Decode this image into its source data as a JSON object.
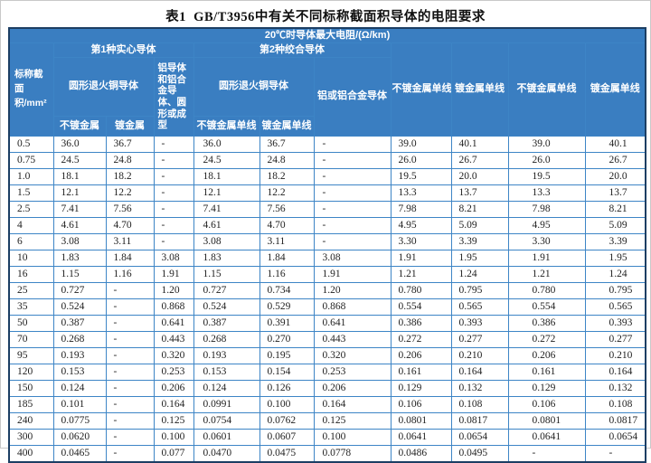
{
  "title": "表1  GB/T3956中有关不同标称截面积导体的电阻要求",
  "table": {
    "top_header": "20℃时导体最大电阻/(Ω/km)",
    "col1_header": "标称截面积/mm²",
    "group1": {
      "label": "第1种实心导体",
      "sub1": "圆形退火铜导体",
      "sub1_cols": [
        "不镀金属",
        "镀金属"
      ],
      "sub2": "铝导体和铝合金导体、圆形或成型"
    },
    "group2": {
      "label": "第2种绞合导体",
      "sub1": "圆形退火铜导体",
      "sub1_cols": [
        "不镀金属单线",
        "镀金属单线"
      ],
      "sub2": "铝或铝合金导体"
    },
    "standalone_cols": [
      "不镀金属单线",
      "镀金属单线",
      "不镀金属单线",
      "镀金属单线"
    ],
    "rows": [
      [
        "0.5",
        "36.0",
        "36.7",
        "-",
        "36.0",
        "36.7",
        "-",
        "39.0",
        "40.1",
        "39.0",
        "40.1"
      ],
      [
        "0.75",
        "24.5",
        "24.8",
        "-",
        "24.5",
        "24.8",
        "-",
        "26.0",
        "26.7",
        "26.0",
        "26.7"
      ],
      [
        "1.0",
        "18.1",
        "18.2",
        "-",
        "18.1",
        "18.2",
        "-",
        "19.5",
        "20.0",
        "19.5",
        "20.0"
      ],
      [
        "1.5",
        "12.1",
        "12.2",
        "-",
        "12.1",
        "12.2",
        "-",
        "13.3",
        "13.7",
        "13.3",
        "13.7"
      ],
      [
        "2.5",
        "7.41",
        "7.56",
        "-",
        "7.41",
        "7.56",
        "-",
        "7.98",
        "8.21",
        "7.98",
        "8.21"
      ],
      [
        "4",
        "4.61",
        "4.70",
        "-",
        "4.61",
        "4.70",
        "-",
        "4.95",
        "5.09",
        "4.95",
        "5.09"
      ],
      [
        "6",
        "3.08",
        "3.11",
        "-",
        "3.08",
        "3.11",
        "-",
        "3.30",
        "3.39",
        "3.30",
        "3.39"
      ],
      [
        "10",
        "1.83",
        "1.84",
        "3.08",
        "1.83",
        "1.84",
        "3.08",
        "1.91",
        "1.95",
        "1.91",
        "1.95"
      ],
      [
        "16",
        "1.15",
        "1.16",
        "1.91",
        "1.15",
        "1.16",
        "1.91",
        "1.21",
        "1.24",
        "1.21",
        "1.24"
      ],
      [
        "25",
        "0.727",
        "-",
        "1.20",
        "0.727",
        "0.734",
        "1.20",
        "0.780",
        "0.795",
        "0.780",
        "0.795"
      ],
      [
        "35",
        "0.524",
        "-",
        "0.868",
        "0.524",
        "0.529",
        "0.868",
        "0.554",
        "0.565",
        "0.554",
        "0.565"
      ],
      [
        "50",
        "0.387",
        "-",
        "0.641",
        "0.387",
        "0.391",
        "0.641",
        "0.386",
        "0.393",
        "0.386",
        "0.393"
      ],
      [
        "70",
        "0.268",
        "-",
        "0.443",
        "0.268",
        "0.270",
        "0.443",
        "0.272",
        "0.277",
        "0.272",
        "0.277"
      ],
      [
        "95",
        "0.193",
        "-",
        "0.320",
        "0.193",
        "0.195",
        "0.320",
        "0.206",
        "0.210",
        "0.206",
        "0.210"
      ],
      [
        "120",
        "0.153",
        "-",
        "0.253",
        "0.153",
        "0.154",
        "0.253",
        "0.161",
        "0.164",
        "0.161",
        "0.164"
      ],
      [
        "150",
        "0.124",
        "-",
        "0.206",
        "0.124",
        "0.126",
        "0.206",
        "0.129",
        "0.132",
        "0.129",
        "0.132"
      ],
      [
        "185",
        "0.101",
        "-",
        "0.164",
        "0.0991",
        "0.100",
        "0.164",
        "0.106",
        "0.108",
        "0.106",
        "0.108"
      ],
      [
        "240",
        "0.0775",
        "-",
        "0.125",
        "0.0754",
        "0.0762",
        "0.125",
        "0.0801",
        "0.0817",
        "0.0801",
        "0.0817"
      ],
      [
        "300",
        "0.0620",
        "-",
        "0.100",
        "0.0601",
        "0.0607",
        "0.100",
        "0.0641",
        "0.0654",
        "0.0641",
        "0.0654"
      ],
      [
        "400",
        "0.0465",
        "-",
        "0.077",
        "0.0470",
        "0.0475",
        "0.0778",
        "0.0486",
        "0.0495",
        "-",
        "-"
      ]
    ]
  },
  "colors": {
    "header_bg": "#3a7ec1",
    "header_border": "#2566a5",
    "grid_border": "#3d85c6",
    "outer_border": "#1c3e63",
    "header_text": "#ffffff",
    "body_text": "#1f1f1f"
  }
}
